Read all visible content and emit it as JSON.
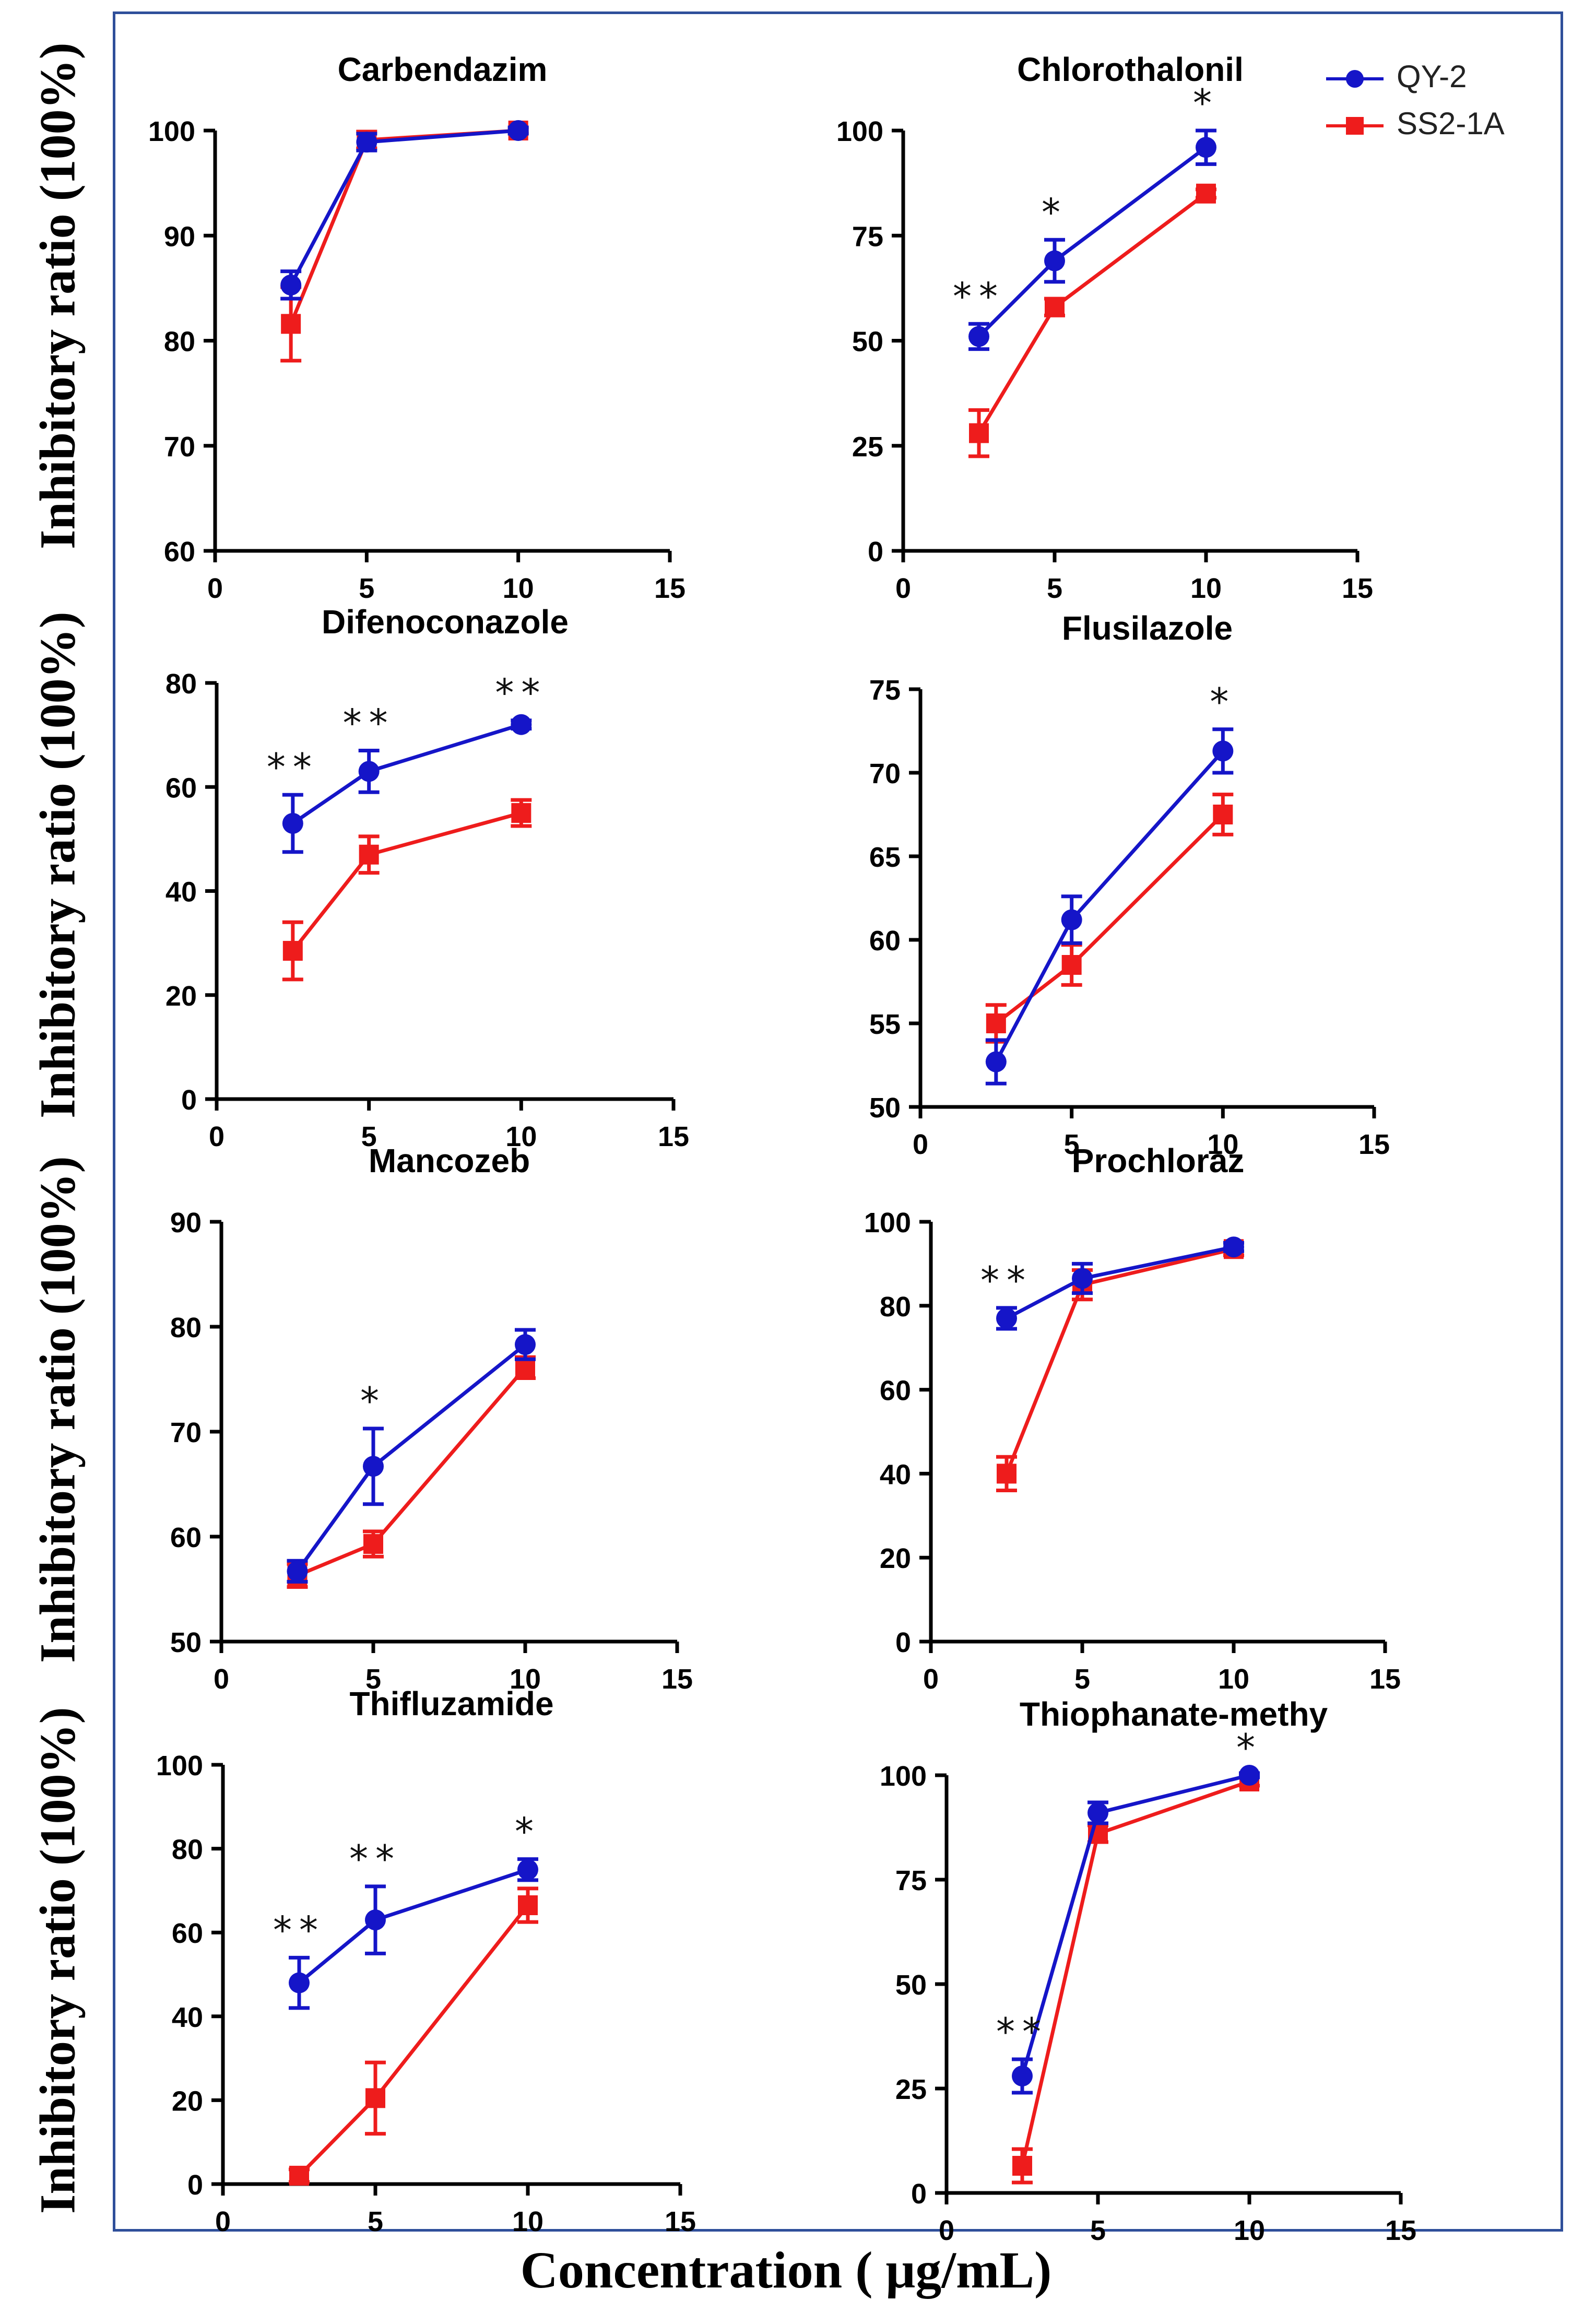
{
  "figure": {
    "y_axis_label": "Inhibitory ratio (100%)",
    "x_axis_label": "Concentration ( μg/mL)"
  },
  "legend": [
    {
      "name": "QY-2",
      "color": "#1515c8",
      "marker": "circle"
    },
    {
      "name": "SS2-1A",
      "color": "#ee1c1c",
      "marker": "square"
    }
  ],
  "chart_data": [
    {
      "type": "line",
      "title": "Carbendazim",
      "x": [
        2.5,
        5,
        10
      ],
      "xlim": [
        0,
        15
      ],
      "xticks": [
        0,
        5,
        10,
        15
      ],
      "ylim": [
        60,
        100
      ],
      "yticks": [
        60,
        70,
        80,
        90,
        100
      ],
      "series": [
        {
          "name": "QY-2",
          "values": [
            85.3,
            98.9,
            100
          ],
          "errors": [
            1.3,
            0.8,
            0.3
          ]
        },
        {
          "name": "SS2-1A",
          "values": [
            81.6,
            99.1,
            100
          ],
          "errors": [
            3.5,
            0.8,
            0.2
          ]
        }
      ],
      "annotations": []
    },
    {
      "type": "line",
      "title": "Chlorothalonil",
      "x": [
        2.5,
        5,
        10
      ],
      "xlim": [
        0,
        15
      ],
      "xticks": [
        0,
        5,
        10,
        15
      ],
      "ylim": [
        0,
        100
      ],
      "yticks": [
        0,
        25,
        50,
        75,
        100
      ],
      "series": [
        {
          "name": "QY-2",
          "values": [
            51,
            69,
            96
          ],
          "errors": [
            3,
            5,
            4
          ]
        },
        {
          "name": "SS2-1A",
          "values": [
            28,
            58,
            85
          ],
          "errors": [
            5.5,
            2,
            1
          ]
        }
      ],
      "annotations": [
        {
          "x": 2.5,
          "text": "**"
        },
        {
          "x": 5,
          "text": "*"
        },
        {
          "x": 10,
          "text": "*"
        }
      ]
    },
    {
      "type": "line",
      "title": "Difenoconazole",
      "x": [
        2.5,
        5,
        10
      ],
      "xlim": [
        0,
        15
      ],
      "xticks": [
        0,
        5,
        10,
        15
      ],
      "ylim": [
        0,
        80
      ],
      "yticks": [
        0,
        20,
        40,
        60,
        80
      ],
      "series": [
        {
          "name": "QY-2",
          "values": [
            53,
            63,
            72
          ],
          "errors": [
            5.5,
            4,
            0.8
          ]
        },
        {
          "name": "SS2-1A",
          "values": [
            28.5,
            47,
            55
          ],
          "errors": [
            5.5,
            3.5,
            2.5
          ]
        }
      ],
      "annotations": [
        {
          "x": 2.5,
          "text": "**"
        },
        {
          "x": 5,
          "text": "**"
        },
        {
          "x": 10,
          "text": "**"
        }
      ]
    },
    {
      "type": "line",
      "title": "Flusilazole",
      "x": [
        2.5,
        5,
        10
      ],
      "xlim": [
        0,
        15
      ],
      "xticks": [
        0,
        5,
        10,
        15
      ],
      "ylim": [
        50,
        75
      ],
      "yticks": [
        50,
        55,
        60,
        65,
        70,
        75
      ],
      "series": [
        {
          "name": "QY-2",
          "values": [
            52.7,
            61.2,
            71.3
          ],
          "errors": [
            1.3,
            1.4,
            1.3
          ]
        },
        {
          "name": "SS2-1A",
          "values": [
            55,
            58.5,
            67.5
          ],
          "errors": [
            1.1,
            1.2,
            1.2
          ]
        }
      ],
      "annotations": [
        {
          "x": 10,
          "text": "*"
        }
      ]
    },
    {
      "type": "line",
      "title": "Mancozeb",
      "x": [
        2.5,
        5,
        10
      ],
      "xlim": [
        0,
        15
      ],
      "xticks": [
        0,
        5,
        10,
        15
      ],
      "ylim": [
        50,
        90
      ],
      "yticks": [
        50,
        60,
        70,
        80,
        90
      ],
      "series": [
        {
          "name": "QY-2",
          "values": [
            56.7,
            66.7,
            78.3
          ],
          "errors": [
            1,
            3.6,
            1.4
          ]
        },
        {
          "name": "SS2-1A",
          "values": [
            56.3,
            59.3,
            76.1
          ],
          "errors": [
            1.1,
            1.2,
            1
          ]
        }
      ],
      "annotations": [
        {
          "x": 5,
          "text": "*"
        }
      ]
    },
    {
      "type": "line",
      "title": "Prochloraz",
      "x": [
        2.5,
        5,
        10
      ],
      "xlim": [
        0,
        15
      ],
      "xticks": [
        0,
        5,
        10,
        15
      ],
      "ylim": [
        0,
        100
      ],
      "yticks": [
        0,
        20,
        40,
        60,
        80,
        100
      ],
      "series": [
        {
          "name": "QY-2",
          "values": [
            77,
            86.5,
            94
          ],
          "errors": [
            2.5,
            3.5,
            1
          ]
        },
        {
          "name": "SS2-1A",
          "values": [
            40,
            85,
            93.5
          ],
          "errors": [
            4,
            3.5,
            1.5
          ]
        }
      ],
      "annotations": [
        {
          "x": 2.5,
          "text": "**"
        }
      ]
    },
    {
      "type": "line",
      "title": "Thifluzamide",
      "x": [
        2.5,
        5,
        10
      ],
      "xlim": [
        0,
        15
      ],
      "xticks": [
        0,
        5,
        10,
        15
      ],
      "ylim": [
        0,
        100
      ],
      "yticks": [
        0,
        20,
        40,
        60,
        80,
        100
      ],
      "series": [
        {
          "name": "QY-2",
          "values": [
            48,
            63,
            75
          ],
          "errors": [
            6,
            8,
            2.5
          ]
        },
        {
          "name": "SS2-1A",
          "values": [
            2,
            20.5,
            66.5
          ],
          "errors": [
            1.5,
            8.5,
            4
          ]
        }
      ],
      "annotations": [
        {
          "x": 2.5,
          "text": "**"
        },
        {
          "x": 5,
          "text": "**"
        },
        {
          "x": 10,
          "text": "*"
        }
      ]
    },
    {
      "type": "line",
      "title": "Thiophanate-methy",
      "x": [
        2.5,
        5,
        10
      ],
      "xlim": [
        0,
        15
      ],
      "xticks": [
        0,
        5,
        10,
        15
      ],
      "ylim": [
        0,
        100
      ],
      "yticks": [
        0,
        25,
        50,
        75,
        100
      ],
      "series": [
        {
          "name": "QY-2",
          "values": [
            28,
            91,
            100
          ],
          "errors": [
            4,
            2.5,
            0.5
          ]
        },
        {
          "name": "SS2-1A",
          "values": [
            6.5,
            86,
            98.5
          ],
          "errors": [
            4,
            2,
            1
          ]
        }
      ],
      "annotations": [
        {
          "x": 2.5,
          "text": "**"
        },
        {
          "x": 10,
          "text": "*"
        }
      ]
    }
  ]
}
